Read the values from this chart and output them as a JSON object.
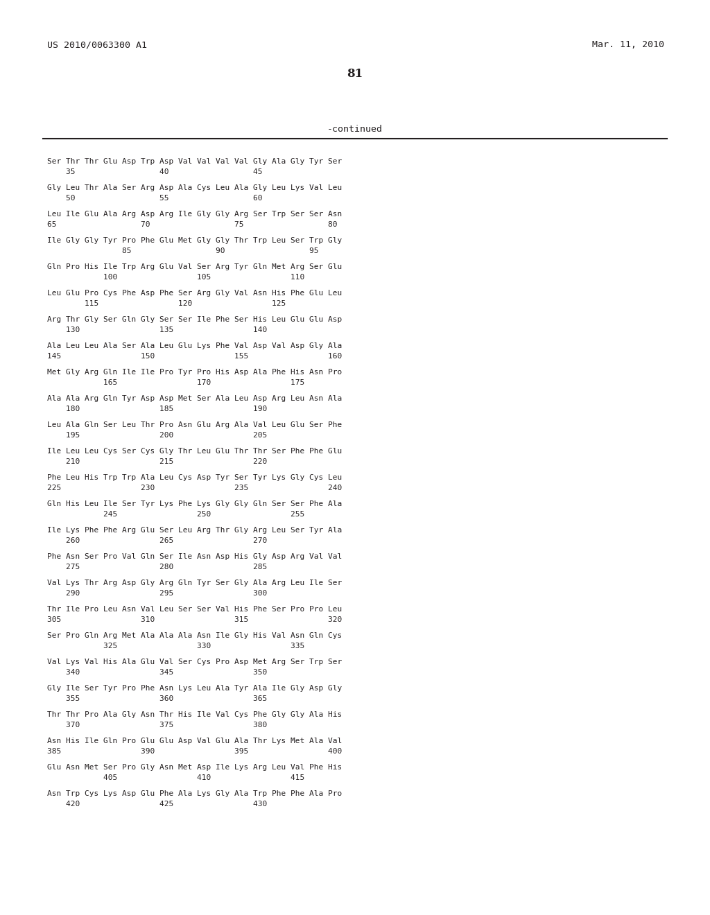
{
  "header_left": "US 2010/0063300 A1",
  "header_right": "Mar. 11, 2010",
  "page_number": "81",
  "continued_label": "-continued",
  "background_color": "#ffffff",
  "text_color": "#231f20",
  "sequence_lines": [
    [
      "Ser Thr Thr Glu Asp Trp Asp Val Val Val Val Gly Ala Gly Tyr Ser",
      "    35                  40                  45"
    ],
    [
      "Gly Leu Thr Ala Ser Arg Asp Ala Cys Leu Ala Gly Leu Lys Val Leu",
      "    50                  55                  60"
    ],
    [
      "Leu Ile Glu Ala Arg Asp Arg Ile Gly Gly Arg Ser Trp Ser Ser Asn",
      "65                  70                  75                  80"
    ],
    [
      "Ile Gly Gly Tyr Pro Phe Glu Met Gly Gly Thr Trp Leu Ser Trp Gly",
      "                85                  90                  95"
    ],
    [
      "Gln Pro His Ile Trp Arg Glu Val Ser Arg Tyr Gln Met Arg Ser Glu",
      "            100                 105                 110"
    ],
    [
      "Leu Glu Pro Cys Phe Asp Phe Ser Arg Gly Val Asn His Phe Glu Leu",
      "        115                 120                 125"
    ],
    [
      "Arg Thr Gly Ser Gln Gly Ser Ser Ile Phe Ser His Leu Glu Glu Asp",
      "    130                 135                 140"
    ],
    [
      "Ala Leu Leu Ala Ser Ala Leu Glu Lys Phe Val Asp Val Asp Gly Ala",
      "145                 150                 155                 160"
    ],
    [
      "Met Gly Arg Gln Ile Ile Pro Tyr Pro His Asp Ala Phe His Asn Pro",
      "            165                 170                 175"
    ],
    [
      "Ala Ala Arg Gln Tyr Asp Asp Met Ser Ala Leu Asp Arg Leu Asn Ala",
      "    180                 185                 190"
    ],
    [
      "Leu Ala Gln Ser Leu Thr Pro Asn Glu Arg Ala Val Leu Glu Ser Phe",
      "    195                 200                 205"
    ],
    [
      "Ile Leu Leu Cys Ser Cys Gly Thr Leu Glu Thr Thr Ser Phe Phe Glu",
      "    210                 215                 220"
    ],
    [
      "Phe Leu His Trp Trp Ala Leu Cys Asp Tyr Ser Tyr Lys Gly Cys Leu",
      "225                 230                 235                 240"
    ],
    [
      "Gln His Leu Ile Ser Tyr Lys Phe Lys Gly Gly Gln Ser Ser Phe Ala",
      "            245                 250                 255"
    ],
    [
      "Ile Lys Phe Phe Arg Glu Ser Leu Arg Thr Gly Arg Leu Ser Tyr Ala",
      "    260                 265                 270"
    ],
    [
      "Phe Asn Ser Pro Val Gln Ser Ile Asn Asp His Gly Asp Arg Val Val",
      "    275                 280                 285"
    ],
    [
      "Val Lys Thr Arg Asp Gly Arg Gln Tyr Ser Gly Ala Arg Leu Ile Ser",
      "    290                 295                 300"
    ],
    [
      "Thr Ile Pro Leu Asn Val Leu Ser Ser Val His Phe Ser Pro Pro Leu",
      "305                 310                 315                 320"
    ],
    [
      "Ser Pro Gln Arg Met Ala Ala Ala Asn Ile Gly His Val Asn Gln Cys",
      "            325                 330                 335"
    ],
    [
      "Val Lys Val His Ala Glu Val Ser Cys Pro Asp Met Arg Ser Trp Ser",
      "    340                 345                 350"
    ],
    [
      "Gly Ile Ser Tyr Pro Phe Asn Lys Leu Ala Tyr Ala Ile Gly Asp Gly",
      "    355                 360                 365"
    ],
    [
      "Thr Thr Pro Ala Gly Asn Thr His Ile Val Cys Phe Gly Gly Ala His",
      "    370                 375                 380"
    ],
    [
      "Asn His Ile Gln Pro Glu Glu Asp Val Glu Ala Thr Lys Met Ala Val",
      "385                 390                 395                 400"
    ],
    [
      "Glu Asn Met Ser Pro Gly Asn Met Asp Ile Lys Arg Leu Val Phe His",
      "            405                 410                 415"
    ],
    [
      "Asn Trp Cys Lys Asp Glu Phe Ala Lys Gly Ala Trp Phe Phe Ala Pro",
      "    420                 425                 430"
    ]
  ]
}
